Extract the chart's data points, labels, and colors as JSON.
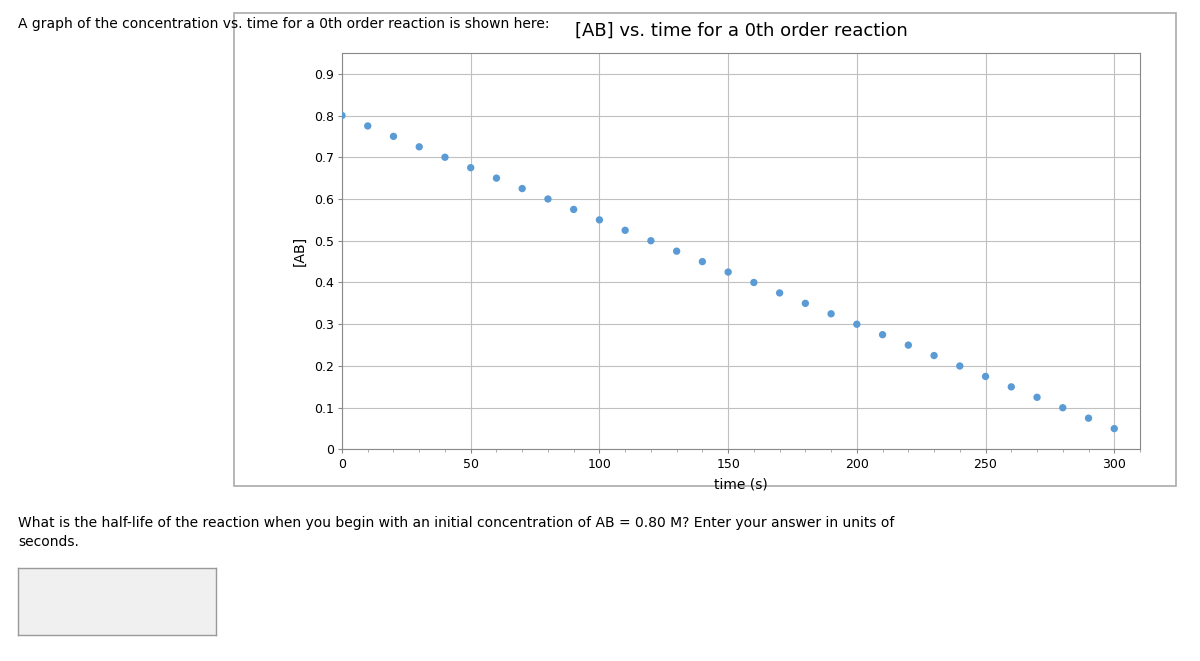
{
  "title": "[AB] vs. time for a 0th order reaction",
  "xlabel": "time (s)",
  "ylabel": "[AB]",
  "background_color": "#ffffff",
  "panel_color": "#ffffff",
  "dot_color": "#5b9bd5",
  "dot_size": 28,
  "xlim": [
    0,
    310
  ],
  "ylim": [
    0,
    0.95
  ],
  "xticks": [
    0,
    50,
    100,
    150,
    200,
    250,
    300
  ],
  "yticks": [
    0,
    0.1,
    0.2,
    0.3,
    0.4,
    0.5,
    0.6,
    0.7,
    0.8,
    0.9
  ],
  "k": 0.0025,
  "AB0": 0.8,
  "time_points": [
    0,
    10,
    20,
    30,
    40,
    50,
    60,
    70,
    80,
    90,
    100,
    110,
    120,
    130,
    140,
    150,
    160,
    170,
    180,
    190,
    200,
    210,
    220,
    230,
    240,
    250,
    260,
    270,
    280,
    290,
    300
  ],
  "header_text": "A graph of the concentration vs. time for a 0th order reaction is shown here:",
  "footer_text": "What is the half-life of the reaction when you begin with an initial concentration of AB = 0.80 M? Enter your answer in units of\nseconds.",
  "grid_color": "#c0c0c0",
  "border_color": "#888888",
  "title_fontsize": 13,
  "axis_fontsize": 10,
  "tick_fontsize": 9,
  "header_fontsize": 10,
  "footer_fontsize": 10
}
